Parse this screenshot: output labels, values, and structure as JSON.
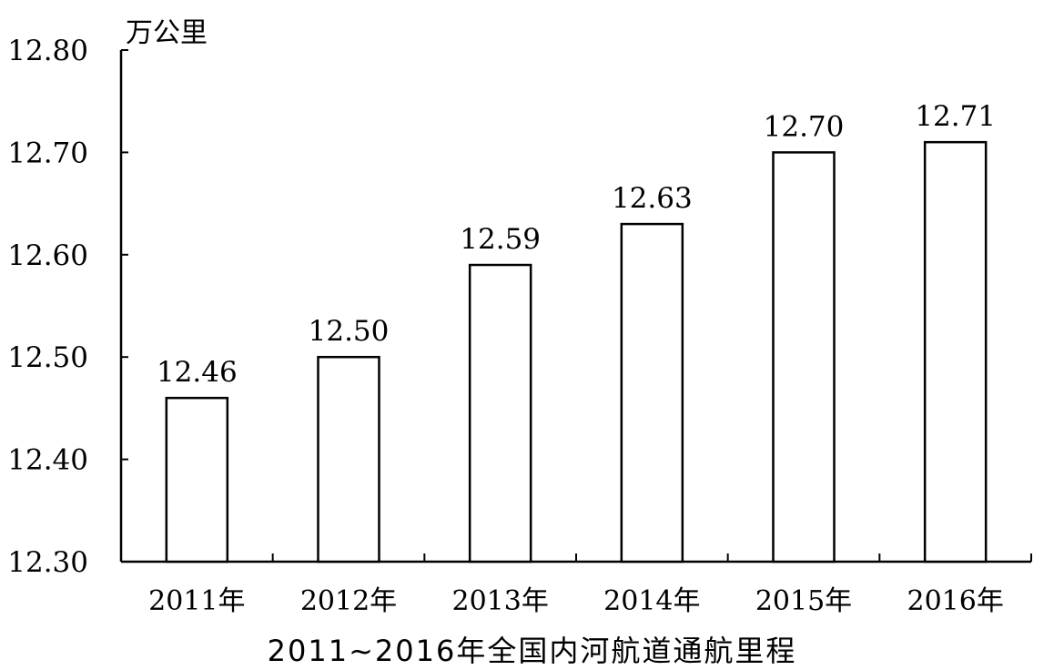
{
  "chart_data": {
    "type": "bar",
    "title": "2011~2016年全国内河航道通航里程",
    "ylabel": "万公里",
    "xlabel": "",
    "categories": [
      "2011年",
      "2012年",
      "2013年",
      "2014年",
      "2015年",
      "2016年"
    ],
    "values": [
      12.46,
      12.5,
      12.59,
      12.63,
      12.7,
      12.71
    ],
    "data_labels": [
      "12.46",
      "12.50",
      "12.59",
      "12.63",
      "12.70",
      "12.71"
    ],
    "ylim": [
      12.3,
      12.8
    ],
    "yticks": [
      12.3,
      12.4,
      12.5,
      12.6,
      12.7,
      12.8
    ],
    "ytick_labels": [
      "12.30",
      "12.40",
      "12.50",
      "12.60",
      "12.70",
      "12.80"
    ],
    "grid": false,
    "legend": "none",
    "bar_fill": "#ffffff",
    "bar_stroke": "#000000"
  }
}
